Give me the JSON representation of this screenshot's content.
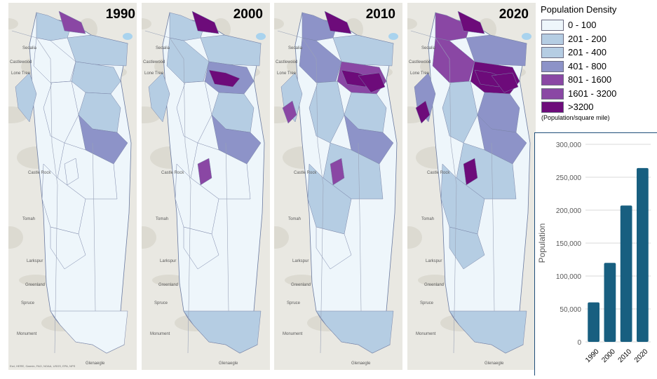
{
  "panels": [
    {
      "year": "1990"
    },
    {
      "year": "2000"
    },
    {
      "year": "2010"
    },
    {
      "year": "2020"
    }
  ],
  "basemap_places": {
    "castlewood": "Castlewood",
    "lone_tree": "Lone Tree",
    "castle_rock": "Castle Rock",
    "larkspur": "Larkspur",
    "greenland": "Greenland",
    "spruce": "Spruce",
    "monument": "Monument",
    "glenaegle": "Glenaegle",
    "tomah": "Tomah",
    "sedalia": "Sedalia",
    "credit": "Esri, HERE, Garmin, FAO, NOAA, USGS, EPA, NPS"
  },
  "legend": {
    "title": "Population Density",
    "unit_note": "(Population/square mile)",
    "classes": [
      {
        "label": "0 - 100",
        "color": "#eef6fb"
      },
      {
        "label": "201 - 200",
        "color": "#b5cde3"
      },
      {
        "label": "201 - 400",
        "color": "#b5cde3"
      },
      {
        "label": "401 - 800",
        "color": "#8d93c8"
      },
      {
        "label": "801 - 1600",
        "color": "#8a47a4"
      },
      {
        "label": "1601 - 3200",
        "color": "#8a47a4"
      },
      {
        "label": ">3200",
        "color": "#6d0b7a"
      }
    ]
  },
  "colors": {
    "bar": "#185f80",
    "axis_text": "#595959",
    "gridline": "#d9d9d9"
  },
  "chart_data": {
    "type": "bar",
    "categories": [
      "1990",
      "2000",
      "2010",
      "2020"
    ],
    "values": [
      60000,
      120000,
      207000,
      264000
    ],
    "ylabel": "Population",
    "ylim": [
      0,
      300000
    ],
    "yticks": [
      0,
      50000,
      100000,
      150000,
      200000,
      250000,
      300000
    ],
    "ytick_labels": [
      "0",
      "50,000",
      "100,000",
      "150,000",
      "200,000",
      "250,000",
      "300,000"
    ],
    "grid": true,
    "legend": "none"
  }
}
